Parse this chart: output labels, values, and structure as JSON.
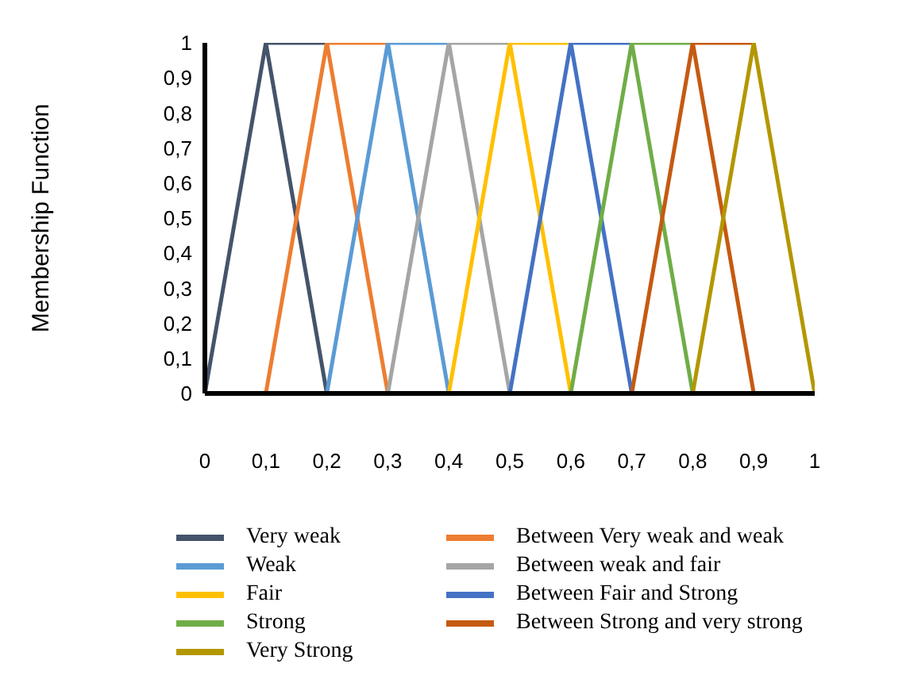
{
  "chart_data": {
    "type": "line",
    "ylabel": "Membership Function",
    "legend": "bottom",
    "grid": false,
    "xlim": [
      0,
      1
    ],
    "ylim": [
      0,
      1
    ],
    "xticks": [
      0,
      {
        "value": 0.1,
        "label": "0,1"
      },
      {
        "value": 0.2,
        "label": "0,2"
      },
      {
        "value": 0.3,
        "label": "0,3"
      },
      {
        "value": 0.4,
        "label": "0,4"
      },
      {
        "value": 0.5,
        "label": "0,5"
      },
      {
        "value": 0.6,
        "label": "0,6"
      },
      {
        "value": 0.7,
        "label": "0,7"
      },
      {
        "value": 0.8,
        "label": "0,8"
      },
      {
        "value": 0.9,
        "label": "0,9"
      },
      1
    ],
    "yticks": [
      0,
      {
        "value": 0.1,
        "label": "0,1"
      },
      {
        "value": 0.2,
        "label": "0,2"
      },
      {
        "value": 0.3,
        "label": "0,3"
      },
      {
        "value": 0.4,
        "label": "0,4"
      },
      {
        "value": 0.5,
        "label": "0,5"
      },
      {
        "value": 0.6,
        "label": "0,6"
      },
      {
        "value": 0.7,
        "label": "0,7"
      },
      {
        "value": 0.8,
        "label": "0,8"
      },
      {
        "value": 0.9,
        "label": "0,9"
      },
      1
    ],
    "series": [
      {
        "name": "Very weak",
        "color": "#44546a",
        "x": [
          0,
          0.1,
          0.2,
          0.1,
          0.2
        ],
        "values": [
          0,
          1,
          0,
          1,
          1
        ]
      },
      {
        "name": "Between Very weak and weak",
        "color": "#ed7d31",
        "x": [
          0.1,
          0.2,
          0.3,
          0.2,
          0.3
        ],
        "values": [
          0,
          1,
          0,
          1,
          1
        ]
      },
      {
        "name": "Weak",
        "color": "#5b9bd5",
        "x": [
          0.2,
          0.3,
          0.4,
          0.3,
          0.4
        ],
        "values": [
          0,
          1,
          0,
          1,
          1
        ]
      },
      {
        "name": "Between weak and fair",
        "color": "#a5a5a5",
        "x": [
          0.3,
          0.4,
          0.5,
          0.4,
          0.5
        ],
        "values": [
          0,
          1,
          0,
          1,
          1
        ]
      },
      {
        "name": "Fair",
        "color": "#ffc000",
        "x": [
          0.4,
          0.5,
          0.6,
          0.5,
          0.6
        ],
        "values": [
          0,
          1,
          0,
          1,
          1
        ]
      },
      {
        "name": "Between Fair and Strong",
        "color": "#4472c4",
        "x": [
          0.5,
          0.6,
          0.7,
          0.6,
          0.7
        ],
        "values": [
          0,
          1,
          0,
          1,
          1
        ]
      },
      {
        "name": "Strong",
        "color": "#70ad47",
        "x": [
          0.6,
          0.7,
          0.8,
          0.7,
          0.8
        ],
        "values": [
          0,
          1,
          0,
          1,
          1
        ]
      },
      {
        "name": "Between Strong and very strong",
        "color": "#c55a11",
        "x": [
          0.7,
          0.8,
          0.9,
          0.8,
          0.9
        ],
        "values": [
          0,
          1,
          0,
          1,
          1
        ]
      },
      {
        "name": "Very Strong",
        "color": "#b39700",
        "x": [
          0.8,
          0.9,
          1
        ],
        "values": [
          0,
          1,
          0
        ]
      }
    ]
  }
}
